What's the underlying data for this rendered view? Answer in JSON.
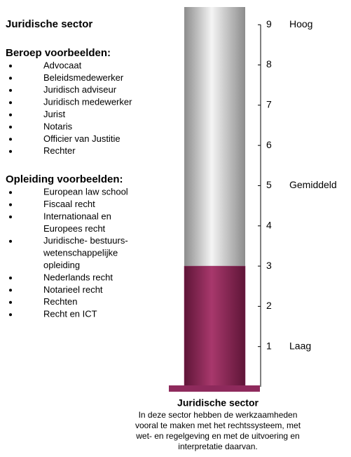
{
  "chart_data": {
    "type": "bar",
    "categories": [
      "Juridische sector"
    ],
    "values": [
      3
    ],
    "color": "#8e2a5c",
    "ylim": [
      0,
      9.44
    ],
    "yticks": [
      1,
      2,
      3,
      4,
      5,
      6,
      7,
      8,
      9
    ],
    "annotations": [
      {
        "value": 9,
        "label": "Hoog"
      },
      {
        "value": 5,
        "label": "Gemiddeld"
      },
      {
        "value": 1,
        "label": "Laag"
      }
    ],
    "description": [
      "In deze sector hebben de werkzaamheden",
      "vooral te maken met het rechtssysteem, met",
      "wet- en regelgeving en met de uitvoering en",
      "interpretatie daarvan."
    ]
  },
  "sidebar": {
    "title": "Juridische sector",
    "sections": [
      {
        "heading": "Beroep voorbeelden:",
        "items": [
          [
            "Advocaat"
          ],
          [
            "Beleidsmedewerker"
          ],
          [
            "Juridisch adviseur"
          ],
          [
            "Juridisch medewerker"
          ],
          [
            "Jurist"
          ],
          [
            "Notaris"
          ],
          [
            "Officier van Justitie"
          ],
          [
            "Rechter"
          ]
        ]
      },
      {
        "heading": "Opleiding voorbeelden:",
        "items": [
          [
            "European law school"
          ],
          [
            "Fiscaal recht"
          ],
          [
            "Internationaal en",
            "Europees recht"
          ],
          [
            "Juridische- bestuurs-",
            "wetenschappelijke",
            "opleiding"
          ],
          [
            "Nederlands recht"
          ],
          [
            "Notarieel recht"
          ],
          [
            "Rechten"
          ],
          [
            "Recht en ICT"
          ]
        ]
      }
    ]
  }
}
